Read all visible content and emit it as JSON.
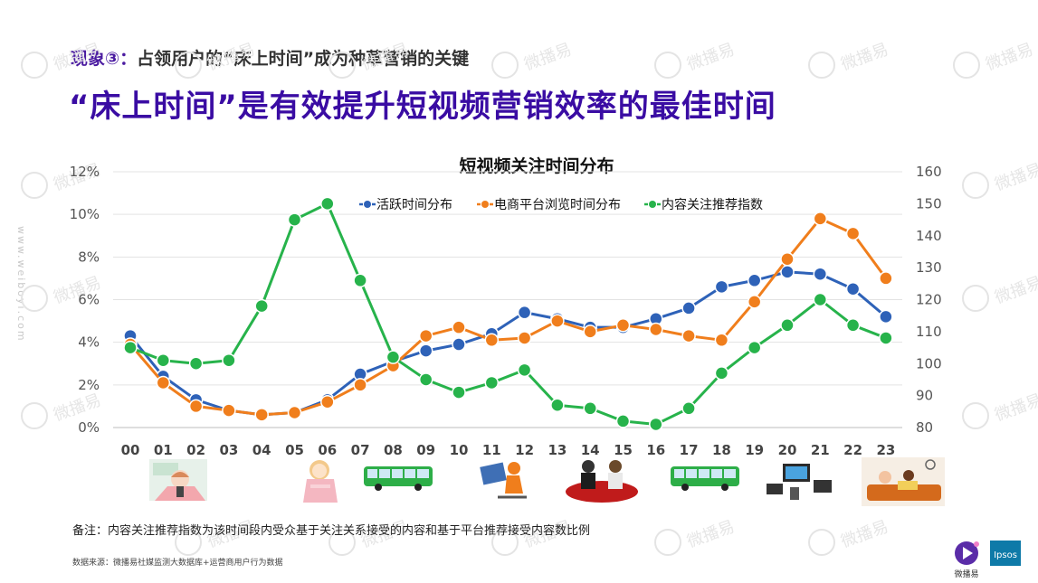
{
  "header": {
    "phenomenon_label": "现象③：",
    "phenomenon_text": "占领用户的“床上时间”成为种草营销的关键",
    "headline": "“床上时间”是有效提升短视频营销效率的最佳时间"
  },
  "chart_data": {
    "type": "line",
    "title": "短视频关注时间分布",
    "categories": [
      "00",
      "01",
      "02",
      "03",
      "04",
      "05",
      "06",
      "07",
      "08",
      "09",
      "10",
      "11",
      "12",
      "13",
      "14",
      "15",
      "16",
      "17",
      "18",
      "19",
      "20",
      "21",
      "22",
      "23"
    ],
    "y_left": {
      "ticks": [
        "0%",
        "2%",
        "4%",
        "6%",
        "8%",
        "10%",
        "12%"
      ],
      "min": 0,
      "max": 12
    },
    "y_right": {
      "ticks": [
        "80",
        "90",
        "100",
        "110",
        "120",
        "130",
        "140",
        "150",
        "160"
      ],
      "min": 80,
      "max": 160
    },
    "series": [
      {
        "name": "活跃时间分布",
        "axis": "left",
        "color": "#2e62b8",
        "values": [
          4.3,
          2.4,
          1.3,
          0.8,
          0.6,
          0.7,
          1.3,
          2.5,
          3.1,
          3.6,
          3.9,
          4.4,
          5.4,
          5.1,
          4.7,
          4.7,
          5.1,
          5.6,
          6.6,
          6.9,
          7.3,
          7.2,
          6.5,
          5.2
        ]
      },
      {
        "name": "电商平台浏览时间分布",
        "axis": "left",
        "color": "#f07e1c",
        "values": [
          3.9,
          2.1,
          1.0,
          0.8,
          0.6,
          0.7,
          1.2,
          2.0,
          2.9,
          4.3,
          4.7,
          4.1,
          4.2,
          5.0,
          4.5,
          4.8,
          4.6,
          4.3,
          4.1,
          5.9,
          7.9,
          9.8,
          9.1,
          7.0
        ]
      },
      {
        "name": "内容关注推荐指数",
        "axis": "right",
        "color": "#27b34b",
        "values": [
          105,
          101,
          100,
          101,
          118,
          145,
          150,
          126,
          102,
          95,
          91,
          94,
          98,
          87,
          86,
          82,
          81,
          86,
          97,
          105,
          112,
          120,
          112,
          108
        ]
      }
    ],
    "legend_position": "top",
    "grid": "horizontal"
  },
  "footer": {
    "note": "备注：内容关注推荐指数为该时间段内受众基于关注关系接受的内容和基于平台推荐接受内容数比例",
    "source": "数据来源：微播易社媒监测大数据库+运营商用户行为数据",
    "logo_caption": "微播易",
    "logo_partner": "Ipsos"
  },
  "watermark": {
    "text": "微播易",
    "side_url": "www.weiboyi.com"
  }
}
